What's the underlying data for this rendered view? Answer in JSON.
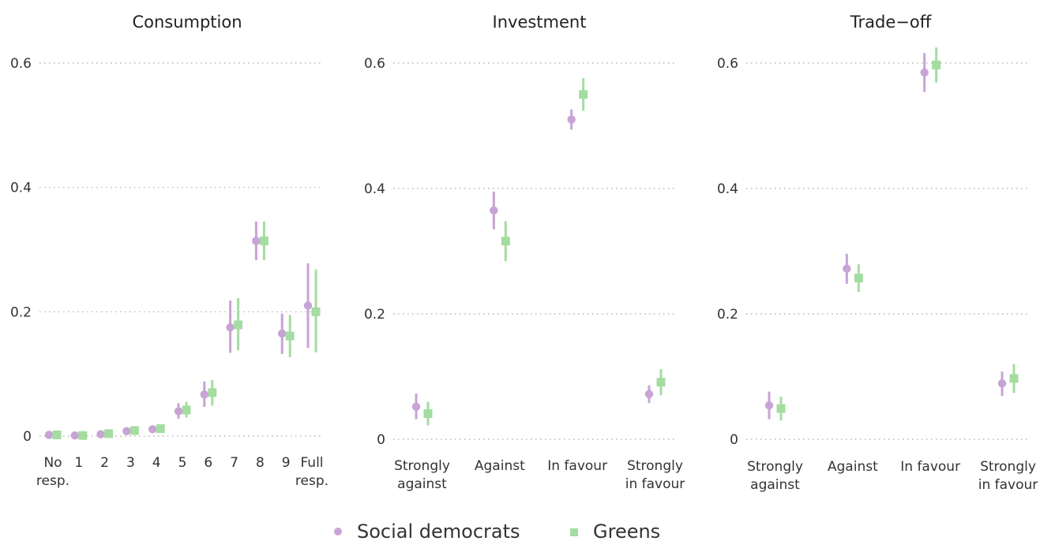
{
  "colors": {
    "social_democrats": "#c8a3d6",
    "greens": "#a4dca1"
  },
  "legend": {
    "items": [
      {
        "label": "Social democrats",
        "marker": "circle",
        "color_key": "social_democrats"
      },
      {
        "label": "Greens",
        "marker": "square",
        "color_key": "greens"
      }
    ]
  },
  "chart_data": [
    {
      "type": "scatter",
      "title": "Consumption",
      "categories": [
        [
          "No",
          "resp."
        ],
        [
          "1"
        ],
        [
          "2"
        ],
        [
          "3"
        ],
        [
          "4"
        ],
        [
          "5"
        ],
        [
          "6"
        ],
        [
          "7"
        ],
        [
          "8"
        ],
        [
          "9"
        ],
        [
          "Full",
          "resp."
        ]
      ],
      "ylim": [
        0,
        0.6
      ],
      "yticks": [
        0,
        0.2,
        0.4,
        0.6
      ],
      "ytick_labels": [
        "0",
        "0.2",
        "0.4",
        "0.6"
      ],
      "grid": "horizontal dotted",
      "series": [
        {
          "name": "Social democrats",
          "marker": "circle",
          "values": [
            0.002,
            0.001,
            0.003,
            0.008,
            0.011,
            0.04,
            0.067,
            0.175,
            0.314,
            0.165,
            0.21
          ],
          "lower": [
            0.0,
            0.0,
            0.0,
            0.005,
            0.008,
            0.028,
            0.047,
            0.134,
            0.283,
            0.132,
            0.142
          ],
          "upper": [
            0.004,
            0.003,
            0.006,
            0.012,
            0.015,
            0.053,
            0.088,
            0.218,
            0.345,
            0.197,
            0.278
          ]
        },
        {
          "name": "Greens",
          "marker": "square",
          "values": [
            0.002,
            0.001,
            0.004,
            0.009,
            0.012,
            0.042,
            0.07,
            0.179,
            0.314,
            0.161,
            0.2
          ],
          "lower": [
            0.0,
            0.0,
            0.001,
            0.005,
            0.008,
            0.03,
            0.049,
            0.138,
            0.283,
            0.127,
            0.135
          ],
          "upper": [
            0.004,
            0.003,
            0.007,
            0.013,
            0.016,
            0.055,
            0.09,
            0.222,
            0.345,
            0.195,
            0.268
          ]
        }
      ]
    },
    {
      "type": "scatter",
      "title": "Investment",
      "categories": [
        [
          "Strongly",
          "against"
        ],
        [
          "Against"
        ],
        [
          "In favour"
        ],
        [
          "Strongly",
          "in favour"
        ]
      ],
      "ylim": [
        0,
        0.6
      ],
      "yticks": [
        0,
        0.2,
        0.4,
        0.6
      ],
      "ytick_labels": [
        "0",
        "0.2",
        "0.4",
        "0.6"
      ],
      "grid": "horizontal dotted",
      "series": [
        {
          "name": "Social democrats",
          "marker": "circle",
          "values": [
            0.052,
            0.365,
            0.51,
            0.072
          ],
          "lower": [
            0.032,
            0.335,
            0.494,
            0.058
          ],
          "upper": [
            0.073,
            0.395,
            0.526,
            0.086
          ]
        },
        {
          "name": "Greens",
          "marker": "square",
          "values": [
            0.041,
            0.316,
            0.55,
            0.091
          ],
          "lower": [
            0.022,
            0.284,
            0.524,
            0.07
          ],
          "upper": [
            0.06,
            0.348,
            0.576,
            0.112
          ]
        }
      ]
    },
    {
      "type": "scatter",
      "title": "Trade−off",
      "categories": [
        [
          "Strongly",
          "against"
        ],
        [
          "Against"
        ],
        [
          "In favour"
        ],
        [
          "Strongly",
          "in favour"
        ]
      ],
      "ylim": [
        0,
        0.6
      ],
      "yticks": [
        0,
        0.2,
        0.4,
        0.6
      ],
      "ytick_labels": [
        "0",
        "0.2",
        "0.4",
        "0.6"
      ],
      "grid": "horizontal dotted",
      "series": [
        {
          "name": "Social democrats",
          "marker": "circle",
          "values": [
            0.054,
            0.272,
            0.585,
            0.089
          ],
          "lower": [
            0.032,
            0.248,
            0.554,
            0.069
          ],
          "upper": [
            0.076,
            0.296,
            0.616,
            0.108
          ]
        },
        {
          "name": "Greens",
          "marker": "square",
          "values": [
            0.049,
            0.257,
            0.597,
            0.097
          ],
          "lower": [
            0.03,
            0.235,
            0.569,
            0.074
          ],
          "upper": [
            0.068,
            0.279,
            0.625,
            0.12
          ]
        }
      ]
    }
  ]
}
